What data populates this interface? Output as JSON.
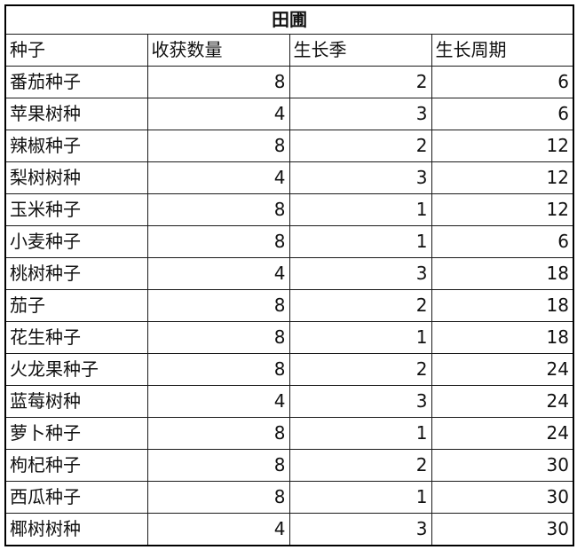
{
  "title": "田圃",
  "headers": [
    "种子",
    "收获数量",
    "生长季",
    "生长周期"
  ],
  "rows": [
    {
      "name": "番茄种子",
      "harvest": 8,
      "seasons": 2,
      "cycle": 6
    },
    {
      "name": "苹果树种",
      "harvest": 4,
      "seasons": 3,
      "cycle": 6
    },
    {
      "name": "辣椒种子",
      "harvest": 8,
      "seasons": 2,
      "cycle": 12
    },
    {
      "name": "梨树树种",
      "harvest": 4,
      "seasons": 3,
      "cycle": 12
    },
    {
      "name": "玉米种子",
      "harvest": 8,
      "seasons": 1,
      "cycle": 12
    },
    {
      "name": "小麦种子",
      "harvest": 8,
      "seasons": 1,
      "cycle": 6
    },
    {
      "name": "桃树种子",
      "harvest": 4,
      "seasons": 3,
      "cycle": 18
    },
    {
      "name": "茄子",
      "harvest": 8,
      "seasons": 2,
      "cycle": 18
    },
    {
      "name": "花生种子",
      "harvest": 8,
      "seasons": 1,
      "cycle": 18
    },
    {
      "name": "火龙果种子",
      "harvest": 8,
      "seasons": 2,
      "cycle": 24
    },
    {
      "name": "蓝莓树种",
      "harvest": 4,
      "seasons": 3,
      "cycle": 24
    },
    {
      "name": "萝卜种子",
      "harvest": 8,
      "seasons": 1,
      "cycle": 24
    },
    {
      "name": "枸杞种子",
      "harvest": 8,
      "seasons": 2,
      "cycle": 30
    },
    {
      "name": "西瓜种子",
      "harvest": 8,
      "seasons": 1,
      "cycle": 30
    },
    {
      "name": "椰树树种",
      "harvest": 4,
      "seasons": 3,
      "cycle": 30
    }
  ]
}
